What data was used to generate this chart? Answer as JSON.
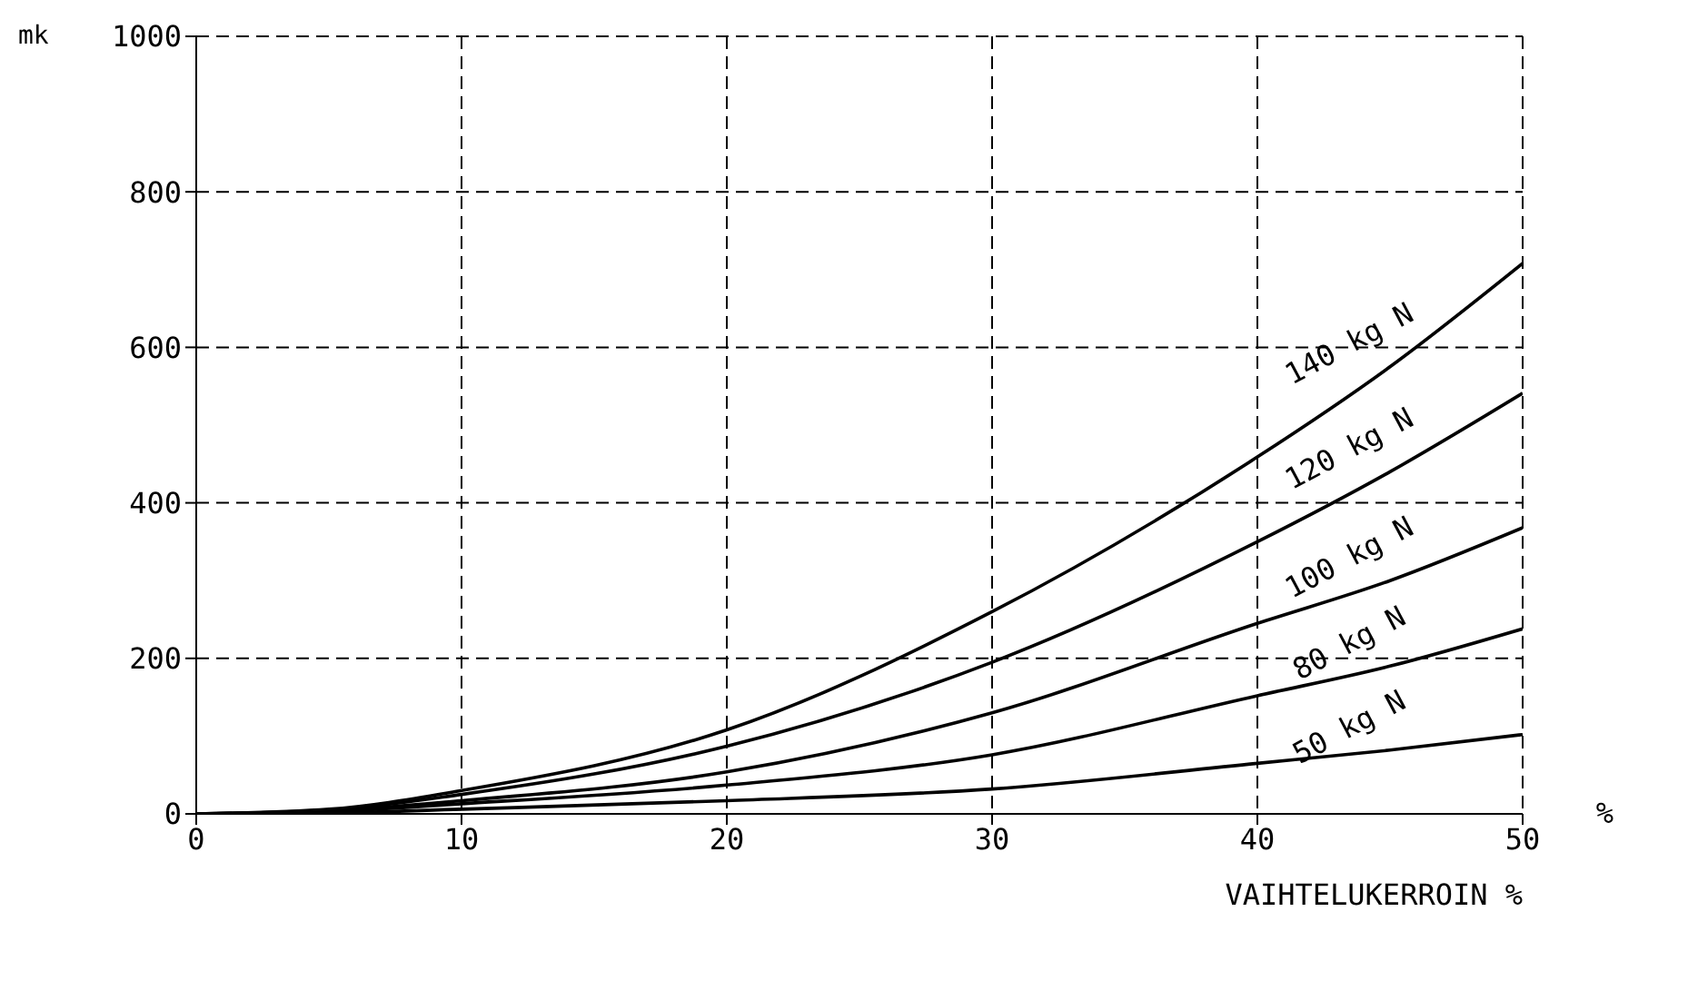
{
  "chart_data": {
    "type": "line",
    "ylabel": "mk",
    "xlabel": "VAIHTELUKERROIN %",
    "annotations": [
      "%"
    ],
    "x": [
      0,
      5,
      10,
      20,
      30,
      40,
      45,
      50
    ],
    "series": [
      {
        "name": "140 kg N",
        "color": "#000000",
        "values": [
          0,
          6,
          30,
          108,
          260,
          459,
          575,
          708
        ]
      },
      {
        "name": "120 kg N",
        "color": "#000000",
        "values": [
          0,
          5,
          25,
          87,
          195,
          350,
          440,
          541
        ]
      },
      {
        "name": "100 kg N",
        "color": "#000000",
        "values": [
          0,
          4,
          17,
          54,
          130,
          245,
          300,
          368
        ]
      },
      {
        "name": "80 kg N",
        "color": "#000000",
        "values": [
          0,
          3,
          13,
          37,
          76,
          152,
          190,
          238
        ]
      },
      {
        "name": "50 kg N",
        "color": "#000000",
        "values": [
          0,
          1,
          6,
          17,
          32,
          65,
          82,
          102
        ]
      }
    ],
    "xlim": [
      0,
      50
    ],
    "xticks": [
      0,
      10,
      20,
      30,
      40,
      50
    ],
    "ylim": [
      0,
      1000
    ],
    "yticks": [
      0,
      200,
      400,
      600,
      800,
      1000
    ],
    "grid": true,
    "marker": "none",
    "line_style": "solid"
  }
}
